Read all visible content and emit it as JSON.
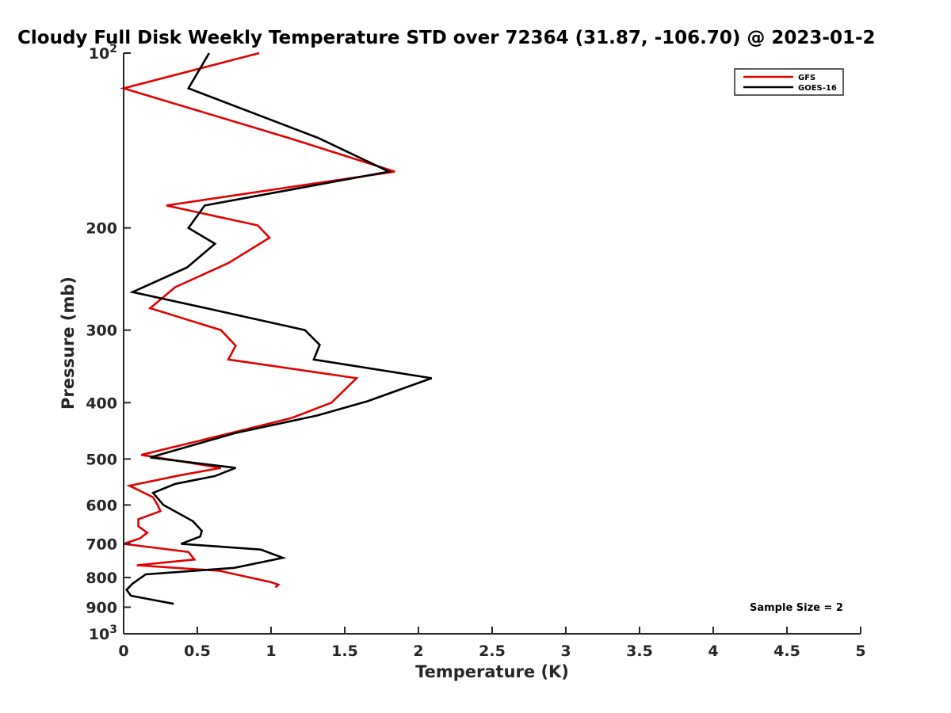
{
  "chart_data": {
    "type": "line",
    "title": "Cloudy Full Disk Weekly Temperature STD over 72364 (31.87, -106.70) @ 2023-01-2",
    "xlabel": "Temperature (K)",
    "ylabel": "Pressure (mb)",
    "xlim": [
      0,
      5
    ],
    "ylim": [
      1000,
      100
    ],
    "yscale": "log",
    "y_reversed": true,
    "grid": false,
    "legend_position": "top-right",
    "x_ticks": [
      {
        "value": 0,
        "label": "0"
      },
      {
        "value": 0.5,
        "label": "0.5"
      },
      {
        "value": 1,
        "label": "1"
      },
      {
        "value": 1.5,
        "label": "1.5"
      },
      {
        "value": 2,
        "label": "2"
      },
      {
        "value": 2.5,
        "label": "2.5"
      },
      {
        "value": 3,
        "label": "3"
      },
      {
        "value": 3.5,
        "label": "3.5"
      },
      {
        "value": 4,
        "label": "4"
      },
      {
        "value": 4.5,
        "label": "4.5"
      },
      {
        "value": 5,
        "label": "5"
      }
    ],
    "y_ticks": [
      {
        "value": 100,
        "base": "10",
        "exp": "2"
      },
      {
        "value": 200,
        "label": "200"
      },
      {
        "value": 300,
        "label": "300"
      },
      {
        "value": 400,
        "label": "400"
      },
      {
        "value": 500,
        "label": "500"
      },
      {
        "value": 600,
        "label": "600"
      },
      {
        "value": 700,
        "label": "700"
      },
      {
        "value": 800,
        "label": "800"
      },
      {
        "value": 900,
        "label": "900"
      },
      {
        "value": 1000,
        "base": "10",
        "exp": "3"
      }
    ],
    "series": [
      {
        "name": "GFS",
        "color": "#e30000",
        "points": [
          [
            0.92,
            100
          ],
          [
            0.0,
            115
          ],
          [
            1.12,
            140
          ],
          [
            1.84,
            160
          ],
          [
            0.29,
            183
          ],
          [
            0.91,
            198
          ],
          [
            0.99,
            208
          ],
          [
            0.71,
            230
          ],
          [
            0.35,
            253
          ],
          [
            0.18,
            275
          ],
          [
            0.66,
            300
          ],
          [
            0.76,
            319
          ],
          [
            0.71,
            337
          ],
          [
            1.58,
            363
          ],
          [
            1.41,
            400
          ],
          [
            1.14,
            425
          ],
          [
            0.67,
            455
          ],
          [
            0.12,
            492
          ],
          [
            0.66,
            518
          ],
          [
            0.39,
            533
          ],
          [
            0.04,
            556
          ],
          [
            0.2,
            582
          ],
          [
            0.23,
            600
          ],
          [
            0.25,
            615
          ],
          [
            0.1,
            635
          ],
          [
            0.1,
            653
          ],
          [
            0.16,
            670
          ],
          [
            0.11,
            685
          ],
          [
            0.0,
            700
          ],
          [
            0.44,
            723
          ],
          [
            0.48,
            745
          ],
          [
            0.09,
            762
          ],
          [
            0.65,
            779
          ],
          [
            1.0,
            815
          ],
          [
            1.05,
            823
          ],
          [
            1.03,
            832
          ]
        ]
      },
      {
        "name": "GOES-16",
        "color": "#000000",
        "points": [
          [
            0.58,
            100
          ],
          [
            0.44,
            115
          ],
          [
            1.32,
            140
          ],
          [
            1.8,
            160
          ],
          [
            0.55,
            183
          ],
          [
            0.44,
            200
          ],
          [
            0.62,
            213
          ],
          [
            0.43,
            234
          ],
          [
            0.06,
            258
          ],
          [
            0.56,
            275
          ],
          [
            1.23,
            300
          ],
          [
            1.33,
            318
          ],
          [
            1.29,
            337
          ],
          [
            2.09,
            363
          ],
          [
            1.65,
            398
          ],
          [
            1.31,
            421
          ],
          [
            0.76,
            451
          ],
          [
            0.45,
            475
          ],
          [
            0.18,
            497
          ],
          [
            0.76,
            518
          ],
          [
            0.62,
            535
          ],
          [
            0.35,
            552
          ],
          [
            0.2,
            572
          ],
          [
            0.27,
            600
          ],
          [
            0.47,
            640
          ],
          [
            0.53,
            665
          ],
          [
            0.52,
            680
          ],
          [
            0.39,
            700
          ],
          [
            0.93,
            716
          ],
          [
            1.08,
            740
          ],
          [
            0.75,
            770
          ],
          [
            0.15,
            790
          ],
          [
            0.06,
            820
          ],
          [
            0.02,
            840
          ],
          [
            0.05,
            860
          ],
          [
            0.34,
            888
          ]
        ]
      }
    ],
    "annotation": "Sample Size = 2"
  }
}
